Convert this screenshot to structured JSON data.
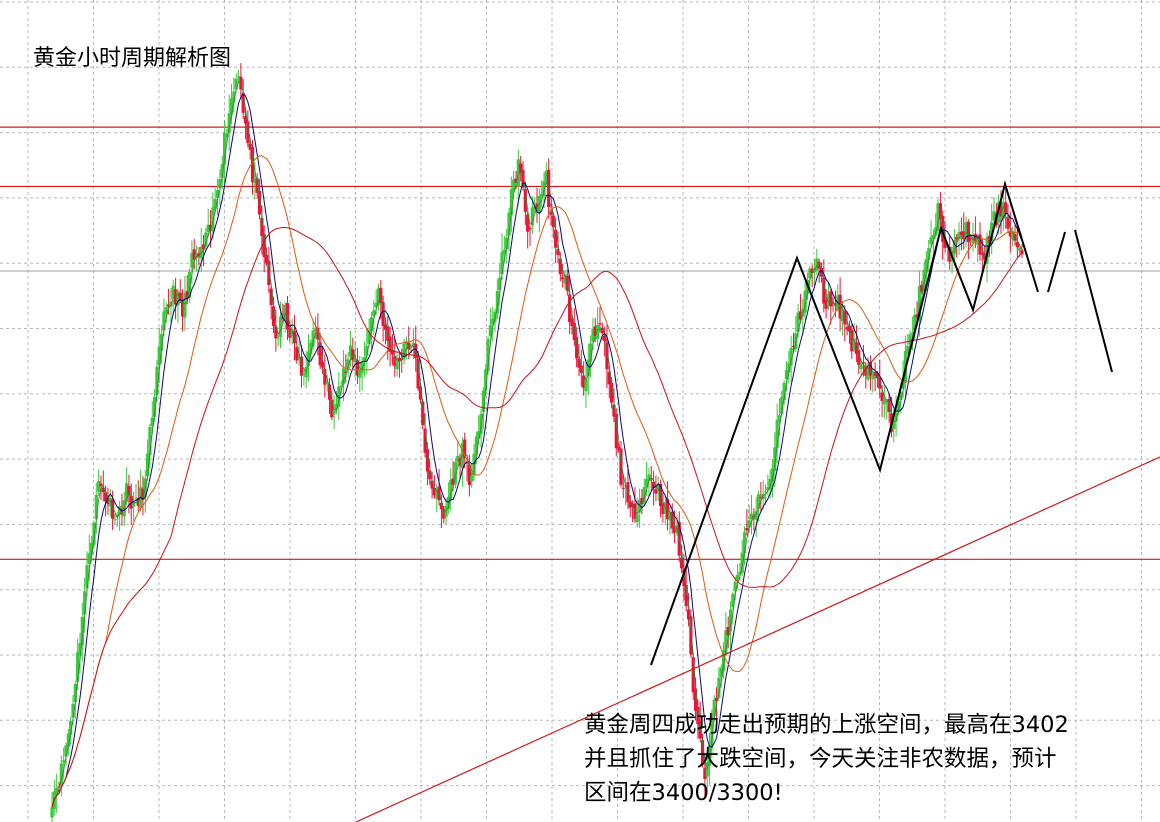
{
  "title": "黄金小时周期解析图",
  "annotation": {
    "line1": "黄金周四成功走出预期的上涨空间，最高在3402",
    "line2": "并且抓住了大跌空间，今天关注非农数据，预计",
    "line3": "区间在3400/3300!"
  },
  "chart_data": {
    "type": "candlestick",
    "instrument": "黄金",
    "timeframe": "小时",
    "bull_color": "#3cc83c",
    "bear_color": "#e8143c",
    "ma_colors": {
      "fast": "#2a8a2a",
      "mid": "#0a0a78",
      "slow": "#e05a14",
      "slowest": "#c81414"
    },
    "horizontal_levels": [
      3402,
      3388,
      3300
    ],
    "annotated_range": [
      3300,
      3400
    ],
    "annotated_high": 3402,
    "ylim": [
      3238,
      3432
    ],
    "grid": true,
    "closes": [
      3244,
      3250,
      3262,
      3282,
      3302,
      3318,
      3314,
      3310,
      3316,
      3312,
      3318,
      3340,
      3356,
      3364,
      3358,
      3370,
      3372,
      3378,
      3392,
      3406,
      3416,
      3398,
      3384,
      3368,
      3352,
      3358,
      3350,
      3342,
      3356,
      3344,
      3336,
      3342,
      3348,
      3344,
      3354,
      3364,
      3350,
      3346,
      3352,
      3348,
      3324,
      3316,
      3310,
      3320,
      3326,
      3318,
      3336,
      3354,
      3366,
      3382,
      3394,
      3378,
      3384,
      3390,
      3372,
      3366,
      3350,
      3342,
      3352,
      3354,
      3336,
      3320,
      3310,
      3314,
      3320,
      3316,
      3310,
      3306,
      3290,
      3264,
      3250,
      3266,
      3278,
      3290,
      3302,
      3310,
      3314,
      3318,
      3336,
      3346,
      3356,
      3366,
      3370,
      3360,
      3362,
      3356,
      3350,
      3346,
      3344,
      3338,
      3332,
      3342,
      3352,
      3362,
      3372,
      3382,
      3372,
      3374,
      3378,
      3374,
      3372,
      3380,
      3384,
      3376,
      3372
    ]
  }
}
